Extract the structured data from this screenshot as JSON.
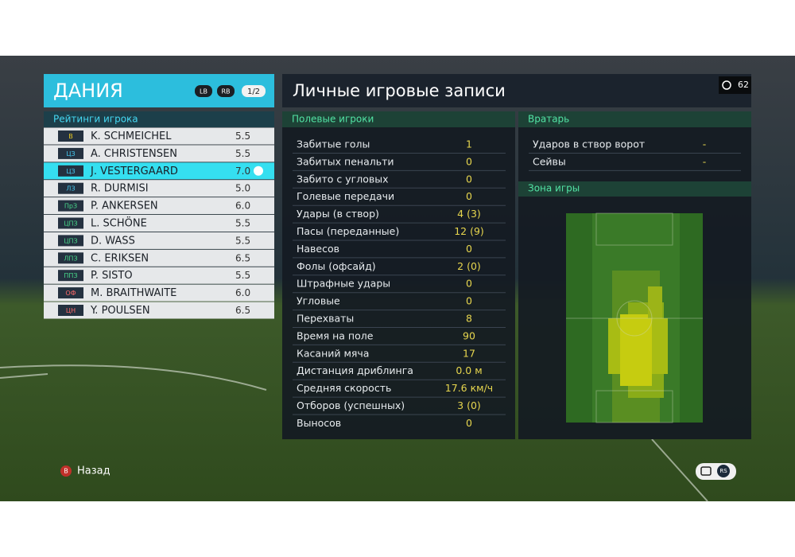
{
  "header": {
    "team": "ДАНИЯ",
    "buttons": [
      "LB",
      "RB"
    ],
    "page": "1/2"
  },
  "ratings_title": "Рейтинги игрока",
  "players": [
    {
      "position": "В",
      "name": "K. SCHMEICHEL",
      "rating": "5.5"
    },
    {
      "position": "ЦЗ",
      "name": "A. CHRISTENSEN",
      "rating": "5.5"
    },
    {
      "position": "ЦЗ",
      "name": "J. VESTERGAARD",
      "rating": "7.0"
    },
    {
      "position": "ЛЗ",
      "name": "R. DURMISI",
      "rating": "5.0"
    },
    {
      "position": "ПрЗ",
      "name": "P. ANKERSEN",
      "rating": "6.0"
    },
    {
      "position": "ЦПЗ",
      "name": "L. SCHÖNE",
      "rating": "5.5"
    },
    {
      "position": "ЦПЗ",
      "name": "D. WASS",
      "rating": "5.5"
    },
    {
      "position": "ЛПЗ",
      "name": "C. ERIKSEN",
      "rating": "6.5"
    },
    {
      "position": "ППЗ",
      "name": "P. SISTO",
      "rating": "5.5"
    },
    {
      "position": "ОФ",
      "name": "M. BRAITHWAITE",
      "rating": "6.0"
    },
    {
      "position": "ЦН",
      "name": "Y. POULSEN",
      "rating": "6.5"
    }
  ],
  "title": "Личные игровые записи",
  "timer": "62",
  "field_players": {
    "title": "Полевые игроки",
    "rows": [
      [
        "Забитые голы",
        "1"
      ],
      [
        "Забитых пенальти",
        "0"
      ],
      [
        "Забито с угловых",
        "0"
      ],
      [
        "Голевые передачи",
        "0"
      ],
      [
        "Удары (в створ)",
        "4 (3)"
      ],
      [
        "Пасы (переданные)",
        "12 (9)"
      ],
      [
        "Навесов",
        "0"
      ],
      [
        "Фолы (офсайд)",
        "2 (0)"
      ],
      [
        "Штрафные удары",
        "0"
      ],
      [
        "Угловые",
        "0"
      ],
      [
        "Перехваты",
        "8"
      ],
      [
        "Время на поле",
        "90"
      ],
      [
        "Касаний мяча",
        "17"
      ],
      [
        "Дистанция дриблинга",
        "0.0 м"
      ],
      [
        "Средняя скорость",
        "17.6 км/ч"
      ],
      [
        "Отборов (успешных)",
        "3 (0)"
      ],
      [
        "Выносов",
        "0"
      ]
    ]
  },
  "goalkeeper": {
    "title": "Вратарь",
    "rows": [
      [
        "Ударов в створ ворот",
        "-"
      ],
      [
        "Сейвы",
        "-"
      ]
    ]
  },
  "zone_title": "Зона игры",
  "footer": {
    "back_button": "B",
    "back": "Назад",
    "right_button": "RS"
  }
}
